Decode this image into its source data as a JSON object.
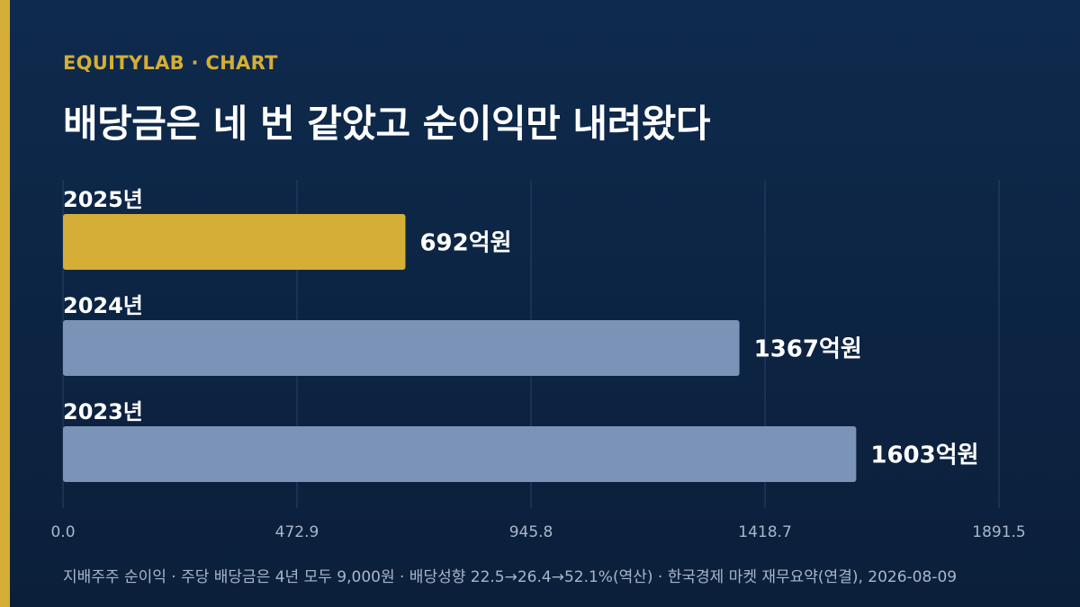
{
  "header": {
    "eyebrow": "EQUITYLAB · CHART",
    "title": "배당금은 네 번 같았고 순이익만 내려왔다"
  },
  "footer": {
    "source": "지배주주 순이익 · 주당 배당금은 4년 모두 9,000원 · 배당성향 22.5→26.4→52.1%(역산) · 한국경제 마켓 재무요약(연결), 2026-08-09"
  },
  "colors": {
    "highlight_bar": "#d4ae36",
    "base_bar": "#7a93b6",
    "accent": "#d4ae36",
    "gridline": "#2a4066",
    "tick_label": "#a9b6cc"
  },
  "chart_data": {
    "type": "bar",
    "orientation": "horizontal",
    "categories": [
      "2025년",
      "2024년",
      "2023년"
    ],
    "values": [
      692,
      1367,
      1603
    ],
    "value_labels": [
      "692억원",
      "1367억원",
      "1603억원"
    ],
    "highlight_index": 0,
    "x_ticks": [
      "0.0",
      "472.9",
      "945.8",
      "1418.7",
      "1891.5"
    ],
    "xlim": [
      0,
      1891.5
    ],
    "grid": true,
    "title": "",
    "xlabel": "",
    "ylabel": ""
  }
}
